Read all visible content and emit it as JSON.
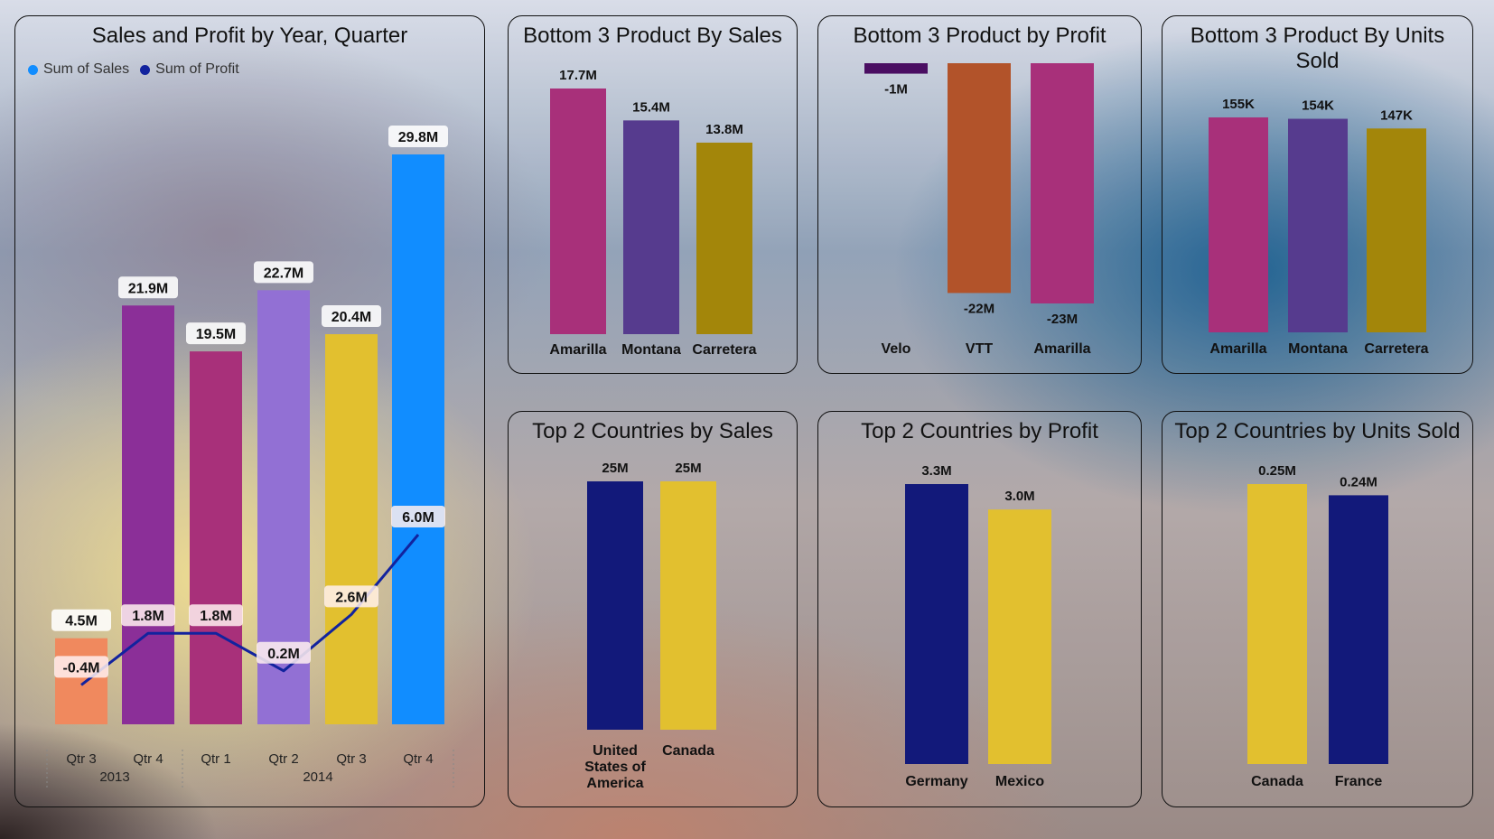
{
  "main_chart": {
    "title": "Sales and Profit by Year, Quarter",
    "legend": [
      "Sum of  Sales",
      "Sum of Profit"
    ],
    "legend_colors": [
      "#118DFF",
      "#12239E"
    ],
    "line_color": "#12239E",
    "bar_colors": [
      "#F0895E",
      "#8B2F98",
      "#A8307A",
      "#9270D4",
      "#E2C02F",
      "#118DFF"
    ],
    "quarters": [
      "Qtr 3",
      "Qtr 4",
      "Qtr 1",
      "Qtr 2",
      "Qtr 3",
      "Qtr 4"
    ],
    "years": [
      "2013",
      "2014"
    ],
    "sales_labels": [
      "4.5M",
      "21.9M",
      "19.5M",
      "22.7M",
      "20.4M",
      "29.8M"
    ],
    "profit_labels": [
      "-0.4M",
      "1.8M",
      "1.8M",
      "0.2M",
      "2.6M",
      "6.0M"
    ]
  },
  "panels": {
    "bottom_sales": {
      "title": "Bottom 3 Product By Sales",
      "categories": [
        "Amarilla",
        "Montana",
        "Carretera"
      ],
      "labels": [
        "17.7M",
        "15.4M",
        "13.8M"
      ],
      "colors": [
        "#A8307A",
        "#563B8E",
        "#A3860A"
      ]
    },
    "bottom_profit": {
      "title": "Bottom 3 Product by Profit",
      "categories": [
        "Velo",
        "VTT",
        "Amarilla"
      ],
      "labels": [
        "-1M",
        "-22M",
        "-23M"
      ],
      "colors": [
        "#4A0E62",
        "#B2532A",
        "#A8307A"
      ]
    },
    "bottom_units": {
      "title": "Bottom 3 Product By Units Sold",
      "categories": [
        "Amarilla",
        "Montana",
        "Carretera"
      ],
      "labels": [
        "155K",
        "154K",
        "147K"
      ],
      "colors": [
        "#A8307A",
        "#563B8E",
        "#A3860A"
      ]
    },
    "top_sales": {
      "title": "Top 2 Countries by Sales",
      "categories": [
        "United States of America",
        "Canada"
      ],
      "labels": [
        "25M",
        "25M"
      ],
      "colors": [
        "#12197A",
        "#E2C02F"
      ]
    },
    "top_profit": {
      "title": "Top 2 Countries by Profit",
      "categories": [
        "Germany",
        "Mexico"
      ],
      "labels": [
        "3.3M",
        "3.0M"
      ],
      "colors": [
        "#12197A",
        "#E2C02F"
      ]
    },
    "top_units": {
      "title": "Top 2 Countries by Units Sold",
      "categories": [
        "Canada",
        "France"
      ],
      "labels": [
        "0.25M",
        "0.24M"
      ],
      "colors": [
        "#E2C02F",
        "#12197A"
      ]
    }
  },
  "chart_data": [
    {
      "type": "bar",
      "title": "Sales and Profit by Year, Quarter",
      "categories": [
        "2013 Qtr 3",
        "2013 Qtr 4",
        "2014 Qtr 1",
        "2014 Qtr 2",
        "2014 Qtr 3",
        "2014 Qtr 4"
      ],
      "series": [
        {
          "name": "Sum of  Sales",
          "type": "bar",
          "values": [
            4.5,
            21.9,
            19.5,
            22.7,
            20.4,
            29.8
          ]
        },
        {
          "name": "Sum of Profit",
          "type": "line",
          "values": [
            -0.4,
            1.8,
            1.8,
            0.2,
            2.6,
            6.0
          ]
        }
      ],
      "unit": "M",
      "legend": "top-left"
    },
    {
      "type": "bar",
      "title": "Bottom 3 Product By Sales",
      "categories": [
        "Amarilla",
        "Montana",
        "Carretera"
      ],
      "values": [
        17.7,
        15.4,
        13.8
      ],
      "unit": "M"
    },
    {
      "type": "bar",
      "title": "Bottom 3 Product by Profit",
      "categories": [
        "Velo",
        "VTT",
        "Amarilla"
      ],
      "values": [
        -1,
        -22,
        -23
      ],
      "unit": "M"
    },
    {
      "type": "bar",
      "title": "Bottom 3 Product By Units Sold",
      "categories": [
        "Amarilla",
        "Montana",
        "Carretera"
      ],
      "values": [
        155,
        154,
        147
      ],
      "unit": "K"
    },
    {
      "type": "bar",
      "title": "Top 2 Countries by Sales",
      "categories": [
        "United States of America",
        "Canada"
      ],
      "values": [
        25,
        25
      ],
      "unit": "M"
    },
    {
      "type": "bar",
      "title": "Top 2 Countries by Profit",
      "categories": [
        "Germany",
        "Mexico"
      ],
      "values": [
        3.3,
        3.0
      ],
      "unit": "M"
    },
    {
      "type": "bar",
      "title": "Top 2 Countries by Units Sold",
      "categories": [
        "Canada",
        "France"
      ],
      "values": [
        0.25,
        0.24
      ],
      "unit": "M"
    }
  ]
}
